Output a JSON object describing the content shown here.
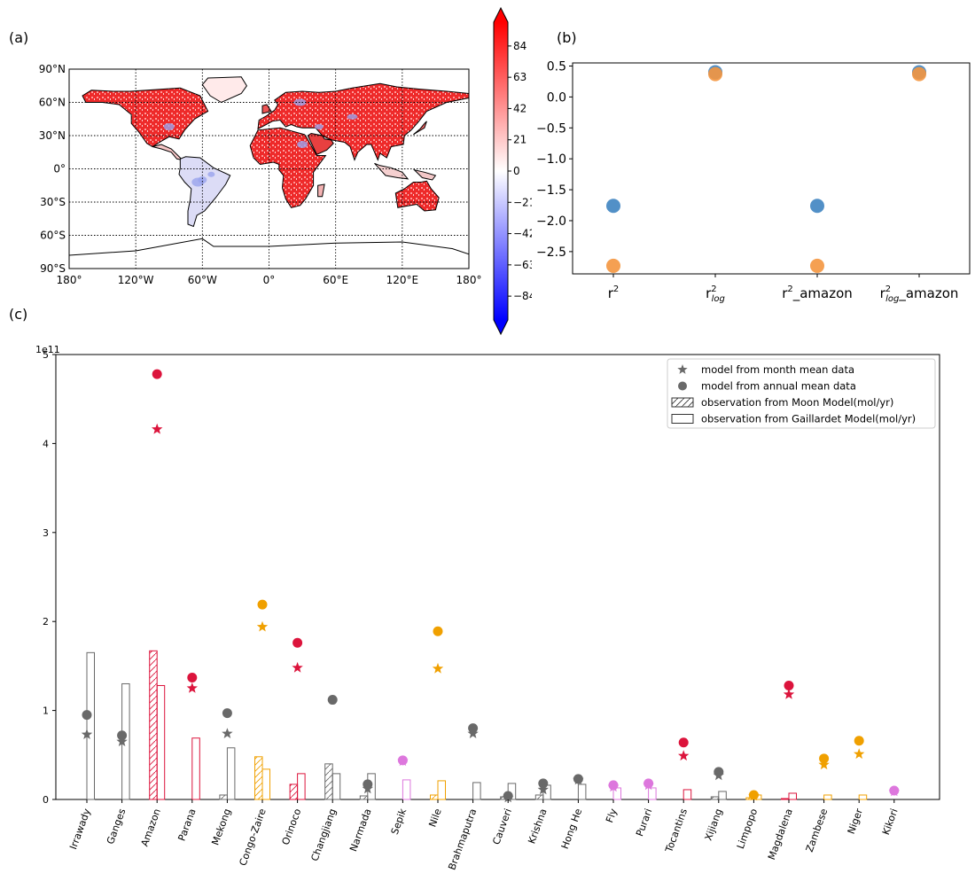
{
  "panel_labels": {
    "a": "(a)",
    "b": "(b)",
    "c": "(c)"
  },
  "colors": {
    "red": "#dc143c",
    "gray": "#696969",
    "orange": "#f0a000",
    "violet": "#dd77dd",
    "blue_point": "#3f84c1",
    "orange_point": "#f4963f"
  },
  "chart_data": [
    {
      "type": "heatmap",
      "panel": "a",
      "title": "",
      "x_tick_labels": [
        "180°",
        "120°W",
        "60°W",
        "0°",
        "60°E",
        "120°E",
        "180°"
      ],
      "y_tick_labels": [
        "90°N",
        "60°N",
        "30°N",
        "0°",
        "30°S",
        "60°S",
        "90°S"
      ],
      "xlim": [
        -180,
        180
      ],
      "ylim": [
        -90,
        90
      ],
      "grid": true,
      "colormap": "bwr",
      "colorbar_ticks": [
        "84",
        "63",
        "42",
        "21",
        "0",
        "−21",
        "−42",
        "−63",
        "−84"
      ],
      "colorbar_range": [
        -100,
        100
      ],
      "colorbar_extend": "both"
    },
    {
      "type": "scatter",
      "panel": "b",
      "categories": [
        "r²",
        "r²log",
        "r²_amazon",
        "r²log_amazon"
      ],
      "category_labels": [
        {
          "base": "r",
          "sup": "2",
          "sub": "",
          "suffix": ""
        },
        {
          "base": "r",
          "sup": "2",
          "sub": "log",
          "suffix": ""
        },
        {
          "base": "r",
          "sup": "2",
          "sub": "",
          "suffix": "_amazon"
        },
        {
          "base": "r",
          "sup": "2",
          "sub": "log",
          "suffix": "_amazon"
        }
      ],
      "series": [
        {
          "values": [
            -1.76,
            0.4,
            -1.76,
            0.4
          ]
        },
        {
          "values": [
            -2.73,
            0.37,
            -2.73,
            0.37
          ]
        }
      ],
      "y_ticks": [
        "0.5",
        "0.0",
        "−0.5",
        "−1.0",
        "−1.5",
        "−2.0",
        "−2.5"
      ],
      "y_tick_values": [
        0.5,
        0.0,
        -0.5,
        -1.0,
        -1.5,
        -2.0,
        -2.5
      ],
      "ylim": [
        -2.86,
        0.55
      ],
      "grid": false
    },
    {
      "type": "bar",
      "panel": "c",
      "offset_label": "1e11",
      "y_ticks": [
        "0",
        "1",
        "2",
        "3",
        "4",
        "5"
      ],
      "y_tick_values": [
        0,
        1,
        2,
        3,
        4,
        5
      ],
      "ylim": [
        0,
        5
      ],
      "legend_position": "top-right",
      "legend": [
        {
          "marker": "star",
          "label": "model from month mean data"
        },
        {
          "marker": "circle",
          "label": "model from annual mean data"
        },
        {
          "marker": "hatched-bar",
          "label": "observation from Moon Model(mol/yr)"
        },
        {
          "marker": "open-bar",
          "label": "observation from Gaillardet Model(mol/yr)"
        }
      ],
      "categories": [
        "Irrawady",
        "Ganges",
        "Amazon",
        "Parana",
        "Mekong",
        "Congo-Zaire",
        "Orinoco",
        "Changjiang",
        "Narmada",
        "Sepik",
        "Nile",
        "Brahmaputra",
        "Cauveri",
        "Krishna",
        "Hong He",
        "Fly",
        "Purari",
        "Tocantins",
        "Xijiang",
        "Limpopo",
        "Magdalena",
        "Zambese",
        "Niger",
        "Kikori"
      ],
      "color_group": [
        "gray",
        "gray",
        "red",
        "red",
        "gray",
        "orange",
        "red",
        "gray",
        "gray",
        "violet",
        "orange",
        "gray",
        "gray",
        "gray",
        "gray",
        "violet",
        "violet",
        "red",
        "gray",
        "orange",
        "red",
        "orange",
        "orange",
        "violet"
      ],
      "series": [
        {
          "name": "model from month mean data",
          "values": [
            0.73,
            0.65,
            4.16,
            1.25,
            0.74,
            1.94,
            1.48,
            null,
            0.12,
            0.43,
            1.47,
            0.74,
            0.02,
            0.11,
            0.22,
            0.14,
            0.16,
            0.49,
            0.27,
            0.04,
            1.18,
            0.39,
            0.51,
            0.09
          ]
        },
        {
          "name": "model from annual mean data",
          "values": [
            0.95,
            0.72,
            4.78,
            1.37,
            0.97,
            2.19,
            1.76,
            1.12,
            0.17,
            0.44,
            1.89,
            0.8,
            0.04,
            0.18,
            0.23,
            0.16,
            0.18,
            0.64,
            0.31,
            0.05,
            1.28,
            0.46,
            0.66,
            0.1
          ]
        },
        {
          "name": "observation from Moon Model(mol/yr)",
          "values": [
            0,
            0,
            1.67,
            0,
            0.05,
            0.48,
            0.17,
            0.4,
            0.04,
            0,
            0.05,
            0,
            0.03,
            0.05,
            0,
            0,
            0,
            0,
            0.03,
            0.02,
            0.01,
            0,
            0,
            0
          ]
        },
        {
          "name": "observation from Gaillardet Model(mol/yr)",
          "values": [
            1.65,
            1.3,
            1.28,
            0.69,
            0.58,
            0.34,
            0.29,
            0.29,
            0.29,
            0.22,
            0.21,
            0.19,
            0.18,
            0.16,
            0.17,
            0.13,
            0.13,
            0.11,
            0.09,
            0.05,
            0.07,
            0.05,
            0.05,
            0
          ]
        }
      ]
    }
  ]
}
